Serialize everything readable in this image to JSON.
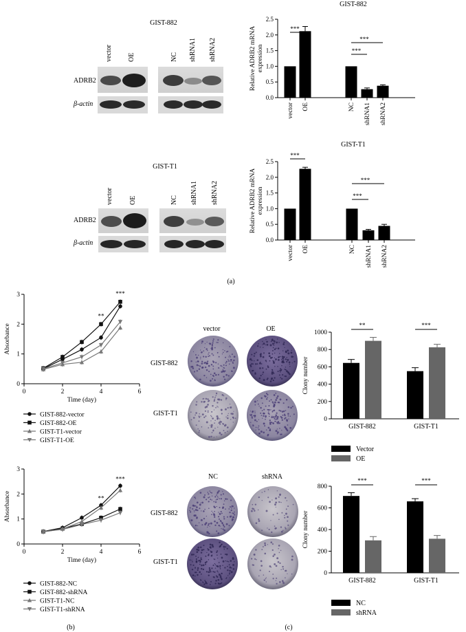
{
  "panels": {
    "a": "(a)",
    "b": "(b)",
    "c": "(c)"
  },
  "western_blot": {
    "groups": [
      {
        "title": "GIST-882",
        "left_lanes": [
          "vector",
          "OE"
        ],
        "right_lanes": [
          "NC",
          "shRNA1",
          "shRNA2"
        ],
        "rows": [
          "ADRB2",
          "β-actin"
        ]
      },
      {
        "title": "GIST-T1",
        "left_lanes": [
          "vector",
          "OE"
        ],
        "right_lanes": [
          "NC",
          "shRNA1",
          "shRNA2"
        ],
        "rows": [
          "ADRB2",
          "β-actin"
        ]
      }
    ]
  },
  "colony_images": {
    "top": {
      "columns": [
        "vector",
        "OE"
      ],
      "rows": [
        "GIST-882",
        "GIST-T1"
      ]
    },
    "bottom": {
      "columns": [
        "NC",
        "shRNA"
      ],
      "rows": [
        "GIST-882",
        "GIST-T1"
      ]
    }
  },
  "chart_data": [
    {
      "id": "mrna_882",
      "type": "bar",
      "title": "GIST-882",
      "ylabel": "Relative ADRB2 mRNA expression",
      "ylim": [
        0,
        2.5
      ],
      "yticks": [
        0.0,
        0.5,
        1.0,
        1.5,
        2.0,
        2.5
      ],
      "ytick_labels": [
        "0.0",
        "0.5",
        "1.0",
        "1.5",
        "2.0",
        "2.5"
      ],
      "categories": [
        "vector",
        "OE",
        "NC",
        "shRNA1",
        "shRNA2"
      ],
      "values": [
        1.0,
        2.12,
        1.0,
        0.27,
        0.38
      ],
      "errors": [
        0,
        0.15,
        0,
        0.04,
        0.03
      ],
      "significance": [
        {
          "from": 0,
          "to": 1,
          "label": "***"
        },
        {
          "from": 2,
          "to": 3,
          "label": "***"
        },
        {
          "from": 2,
          "to": 4,
          "label": "***"
        }
      ]
    },
    {
      "id": "mrna_t1",
      "type": "bar",
      "title": "GIST-T1",
      "ylabel": "Relative ADRB2 mRNA expression",
      "ylim": [
        0,
        2.5
      ],
      "yticks": [
        0.0,
        0.5,
        1.0,
        1.5,
        2.0,
        2.5
      ],
      "ytick_labels": [
        "0.0",
        "0.5",
        "1.0",
        "1.5",
        "2.0",
        "2.5"
      ],
      "categories": [
        "vector",
        "OE",
        "NC",
        "shRNA1",
        "shRNA2"
      ],
      "values": [
        1.0,
        2.27,
        1.0,
        0.31,
        0.45
      ],
      "errors": [
        0,
        0.05,
        0,
        0.03,
        0.05
      ],
      "significance": [
        {
          "from": 0,
          "to": 1,
          "label": "***"
        },
        {
          "from": 2,
          "to": 3,
          "label": "***"
        },
        {
          "from": 2,
          "to": 4,
          "label": "***"
        }
      ]
    },
    {
      "id": "cck8_oe",
      "type": "line",
      "xlabel": "Time (day)",
      "ylabel": "Absorbance",
      "xlim": [
        0,
        6
      ],
      "ylim": [
        0,
        3
      ],
      "xticks": [
        0,
        2,
        4,
        6
      ],
      "yticks": [
        0,
        1,
        2,
        3
      ],
      "x": [
        1,
        2,
        3,
        4,
        5
      ],
      "series": [
        {
          "name": "GIST-882-vector",
          "marker": "circle",
          "color": "#111111",
          "values": [
            0.5,
            0.82,
            1.15,
            1.55,
            2.6
          ]
        },
        {
          "name": "GIST-882-OE",
          "marker": "square",
          "color": "#111111",
          "values": [
            0.52,
            0.9,
            1.4,
            2.0,
            2.75
          ]
        },
        {
          "name": "GIST-T1-vector",
          "marker": "triangle-up",
          "color": "#777777",
          "values": [
            0.48,
            0.65,
            0.72,
            1.08,
            1.88
          ]
        },
        {
          "name": "GIST-T1-OE",
          "marker": "triangle-down",
          "color": "#777777",
          "values": [
            0.5,
            0.7,
            0.9,
            1.3,
            2.08
          ]
        }
      ],
      "annotations": [
        {
          "x": 4,
          "y": 2.2,
          "label": "**"
        },
        {
          "x": 5,
          "y": 2.95,
          "label": "***"
        }
      ]
    },
    {
      "id": "cck8_sh",
      "type": "line",
      "xlabel": "Time (day)",
      "ylabel": "Absorbance",
      "xlim": [
        0,
        6
      ],
      "ylim": [
        0,
        3
      ],
      "xticks": [
        0,
        2,
        4,
        6
      ],
      "yticks": [
        0,
        1,
        2,
        3
      ],
      "x": [
        1,
        2,
        3,
        4,
        5
      ],
      "series": [
        {
          "name": "GIST-882-NC",
          "marker": "circle",
          "color": "#111111",
          "values": [
            0.5,
            0.65,
            1.05,
            1.55,
            2.33
          ]
        },
        {
          "name": "GIST-882-shRNA",
          "marker": "square",
          "color": "#111111",
          "values": [
            0.5,
            0.62,
            0.8,
            1.05,
            1.4
          ]
        },
        {
          "name": "GIST-T1-NC",
          "marker": "triangle-up",
          "color": "#777777",
          "values": [
            0.48,
            0.6,
            0.9,
            1.45,
            2.15
          ]
        },
        {
          "name": "GIST-T1-shRNA",
          "marker": "triangle-down",
          "color": "#777777",
          "values": [
            0.5,
            0.58,
            0.78,
            0.95,
            1.25
          ]
        }
      ],
      "annotations": [
        {
          "x": 4,
          "y": 1.75,
          "label": "**"
        },
        {
          "x": 5,
          "y": 2.52,
          "label": "***"
        }
      ]
    },
    {
      "id": "colony_oe",
      "type": "bar",
      "ylabel": "Clony number",
      "ylim": [
        0,
        1000
      ],
      "yticks": [
        0,
        200,
        400,
        600,
        800,
        1000
      ],
      "categories": [
        "GIST-882",
        "GIST-T1"
      ],
      "series": [
        {
          "name": "Vector",
          "color": "#000000",
          "values": [
            645,
            550
          ],
          "errors": [
            40,
            40
          ]
        },
        {
          "name": "OE",
          "color": "#666666",
          "values": [
            900,
            825
          ],
          "errors": [
            40,
            35
          ]
        }
      ],
      "significance": [
        {
          "category": 0,
          "label": "**"
        },
        {
          "category": 1,
          "label": "***"
        }
      ]
    },
    {
      "id": "colony_sh",
      "type": "bar",
      "ylabel": "Clony number",
      "ylim": [
        0,
        800
      ],
      "yticks": [
        0,
        200,
        400,
        600,
        800
      ],
      "categories": [
        "GIST-882",
        "GIST-T1"
      ],
      "series": [
        {
          "name": "NC",
          "color": "#000000",
          "values": [
            710,
            660
          ],
          "errors": [
            30,
            25
          ]
        },
        {
          "name": "shRNA",
          "color": "#666666",
          "values": [
            300,
            315
          ],
          "errors": [
            35,
            30
          ]
        }
      ],
      "significance": [
        {
          "category": 0,
          "label": "***"
        },
        {
          "category": 1,
          "label": "***"
        }
      ]
    }
  ]
}
